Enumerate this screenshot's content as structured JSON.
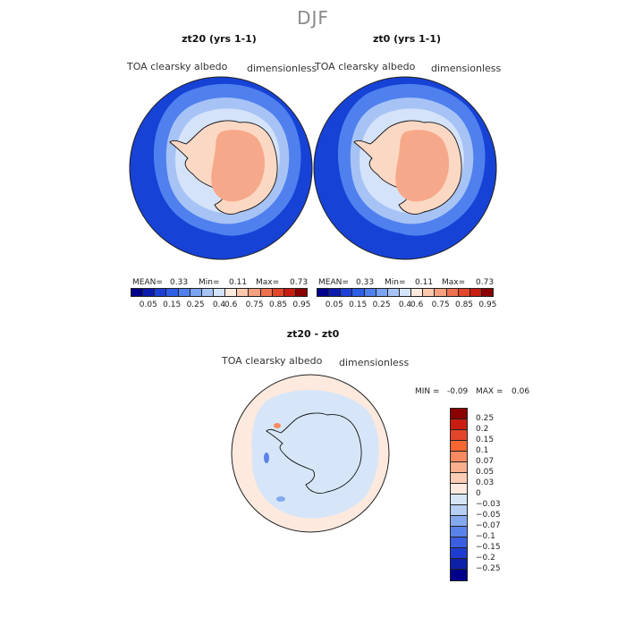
{
  "season": "DJF",
  "panels": [
    {
      "title": "zt20 (yrs 1-1)",
      "variable": "TOA clearsky albedo",
      "units": "dimensionless",
      "stats": {
        "mean_label": "MEAN=",
        "mean": "0.33",
        "min_label": "Min=",
        "min": "0.11",
        "max_label": "Max=",
        "max": "0.73"
      }
    },
    {
      "title": "zt0 (yrs 1-1)",
      "variable": "TOA clearsky albedo",
      "units": "dimensionless",
      "stats": {
        "mean_label": "MEAN=",
        "mean": "0.33",
        "min_label": "Min=",
        "min": "0.11",
        "max_label": "Max=",
        "max": "0.73"
      }
    }
  ],
  "colorbar": {
    "colors": [
      "#00008b",
      "#0d1ab0",
      "#1d3fd8",
      "#2f5fe6",
      "#4f80ee",
      "#7aa3f2",
      "#a7c3f5",
      "#d4e3fa",
      "#fde9de",
      "#fbc7ad",
      "#f6a07f",
      "#ef7150",
      "#e3462a",
      "#c81d10",
      "#8b0000"
    ],
    "ticks": [
      "0.05",
      "0.15",
      "0.25",
      "0.4",
      "0.6",
      "0.75",
      "0.85",
      "0.95"
    ]
  },
  "diff": {
    "title": "zt20 - zt0",
    "variable": "TOA clearsky albedo",
    "units": "dimensionless",
    "min_label": "MIN =",
    "min": "-0.09",
    "max_label": "MAX =",
    "max": "0.06",
    "colors": [
      "#8b0000",
      "#c81d10",
      "#e3462a",
      "#f56633",
      "#f78a60",
      "#f9ae8e",
      "#fbcdb5",
      "#fde9de",
      "#d6e6f8",
      "#b6cff3",
      "#85a9ef",
      "#5b82ea",
      "#3a5fe0",
      "#1f3cd0",
      "#0e1fa8",
      "#00008b"
    ],
    "ticks": [
      "0.25",
      "0.2",
      "0.15",
      "0.1",
      "0.07",
      "0.05",
      "0.03",
      "0",
      "−0.03",
      "−0.05",
      "−0.07",
      "−0.1",
      "−0.15",
      "−0.2",
      "−0.25"
    ]
  },
  "map_colors": {
    "ocean": "#1742d6",
    "sea_ice_edge_1": "#4f80ee",
    "sea_ice_edge_2": "#a7c3f5",
    "sea_ice_edge_3": "#d4e3fa",
    "land_low": "#fbd8c4",
    "land_high": "#f6a98a",
    "diff_neutral_ocean": "#fde9de",
    "diff_neg": "#d6e6f8"
  }
}
